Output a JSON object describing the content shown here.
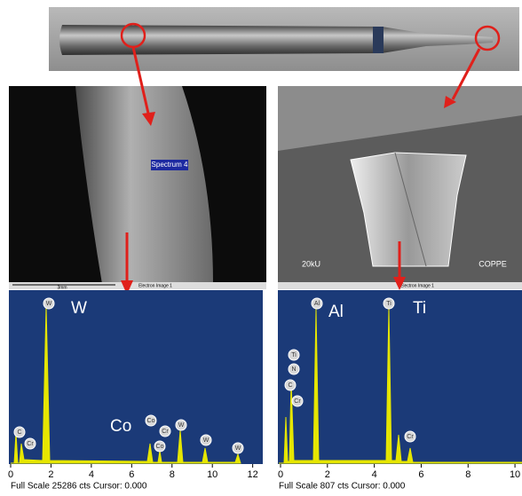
{
  "sem_left": {
    "label": "Spectrum 4",
    "scale": "3mm",
    "footer": "Electron Image 1"
  },
  "sem_right": {
    "voltage": "20kU",
    "lab": "COPPE",
    "footer": "Electron Image 1"
  },
  "spectra": [
    {
      "element_labels": [
        "W",
        "Co"
      ],
      "peak_markers": [
        "W",
        "C",
        "Cr",
        "Co",
        "Cr",
        "Co",
        "W",
        "W",
        "W"
      ],
      "xlim": [
        0,
        12.5
      ],
      "xticks": [
        0,
        2,
        4,
        6,
        8,
        10,
        12
      ],
      "footer": "Full Scale 25286 cts Cursor: 0.000"
    },
    {
      "element_labels": [
        "Al",
        "Ti"
      ],
      "peak_markers": [
        "Al",
        "Ti",
        "Ti",
        "N",
        "C",
        "Cr",
        "Cr"
      ],
      "xlim": [
        0,
        10.3
      ],
      "xticks": [
        0,
        2,
        4,
        6,
        8,
        10
      ],
      "footer": "Full Scale 807 cts Cursor: 0.000"
    }
  ]
}
